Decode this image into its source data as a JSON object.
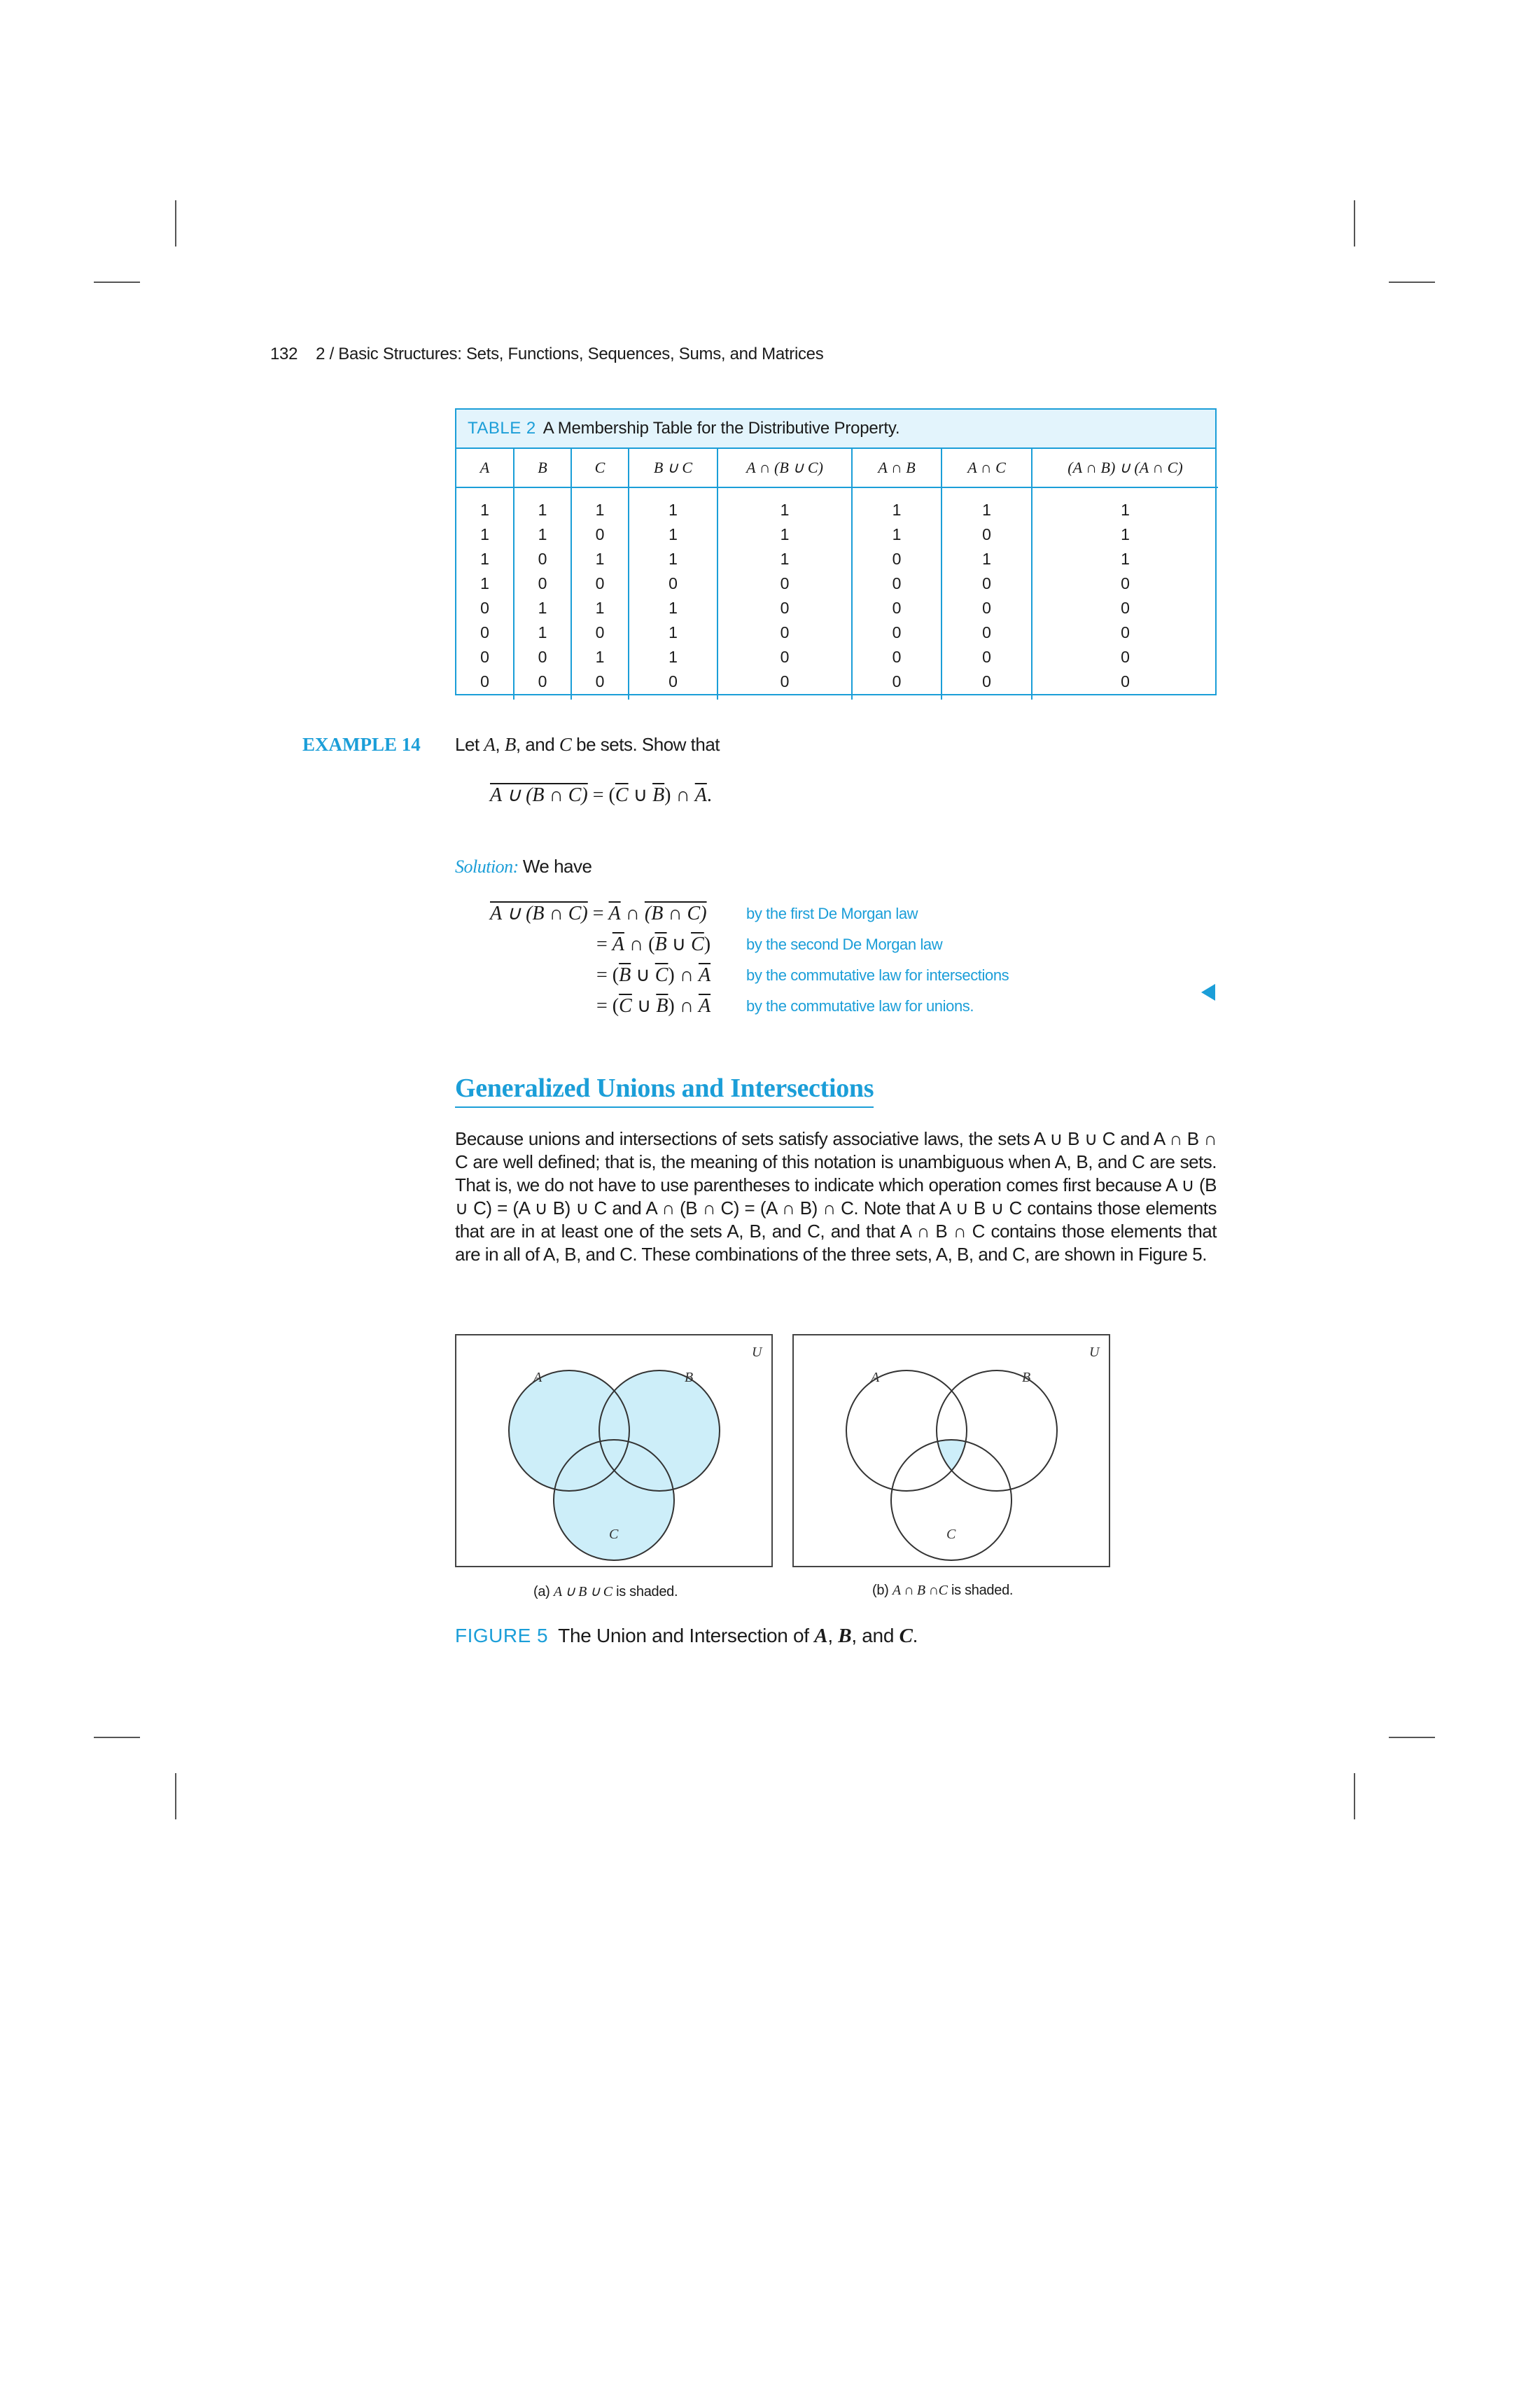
{
  "header": {
    "page_number": "132",
    "running_title": "2 / Basic Structures: Sets, Functions, Sequences, Sums, and Matrices"
  },
  "table": {
    "label": "TABLE 2",
    "caption": "A Membership Table for the Distributive Property.",
    "columns": [
      "A",
      "B",
      "C",
      "B ∪ C",
      "A ∩ (B ∪ C)",
      "A ∩ B",
      "A ∩ C",
      "(A ∩ B) ∪ (A ∩ C)"
    ],
    "rows": [
      [
        "1",
        "1",
        "1",
        "1",
        "1",
        "1",
        "1",
        "1"
      ],
      [
        "1",
        "1",
        "0",
        "1",
        "1",
        "1",
        "0",
        "1"
      ],
      [
        "1",
        "0",
        "1",
        "1",
        "1",
        "0",
        "1",
        "1"
      ],
      [
        "1",
        "0",
        "0",
        "0",
        "0",
        "0",
        "0",
        "0"
      ],
      [
        "0",
        "1",
        "1",
        "1",
        "0",
        "0",
        "0",
        "0"
      ],
      [
        "0",
        "1",
        "0",
        "1",
        "0",
        "0",
        "0",
        "0"
      ],
      [
        "0",
        "0",
        "1",
        "1",
        "0",
        "0",
        "0",
        "0"
      ],
      [
        "0",
        "0",
        "0",
        "0",
        "0",
        "0",
        "0",
        "0"
      ]
    ]
  },
  "example": {
    "label": "EXAMPLE 14",
    "statement_pre": "Let ",
    "set_a": "A",
    "set_b": "B",
    "set_c": "C",
    "statement_and": ", and ",
    "statement_post": " be sets. Show that",
    "solution_label": "Solution:",
    "solution_text": "We have",
    "step_notes": [
      "by the first De Morgan law",
      "by the second De Morgan law",
      "by the commutative law for intersections",
      "by the commutative law for unions."
    ]
  },
  "section": {
    "heading": "Generalized Unions and Intersections",
    "paragraph": "Because unions and intersections of sets satisfy associative laws, the sets A ∪ B ∪ C and A ∩ B ∩ C are well defined; that is, the meaning of this notation is unambiguous when A, B, and C are sets. That is, we do not have to use parentheses to indicate which operation comes first because A ∪ (B ∪ C) = (A ∪ B) ∪ C and A ∩ (B ∩ C) = (A ∩ B) ∩ C. Note that A ∪ B ∪ C contains those elements that are in at least one of the sets A, B, and C, and that A ∩ B ∩ C contains those elements that are in all of A, B, and C. These combinations of the three sets, A, B, and C, are shown in Figure 5."
  },
  "figures": {
    "universe_label": "U",
    "set_labels": [
      "A",
      "B",
      "C"
    ],
    "shade_color": "#cdeef9",
    "panels": [
      {
        "caption_prefix": "(a)",
        "caption_expr": "A ∪ B ∪ C",
        "caption_suffix": "is shaded."
      },
      {
        "caption_prefix": "(b)",
        "caption_expr": "A ∩ B ∩C",
        "caption_suffix": "is shaded."
      }
    ],
    "label": "FIGURE 5",
    "caption_pre": "The Union and Intersection of ",
    "caption_a": "A",
    "caption_b": "B",
    "caption_and": ", and ",
    "caption_c": "C",
    "caption_end": "."
  },
  "colors": {
    "accent": "#1b9ed8",
    "shade": "#cdeef9"
  }
}
